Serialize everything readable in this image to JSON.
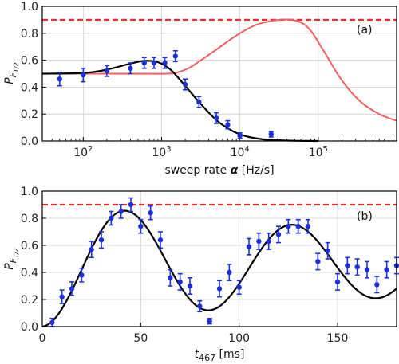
{
  "colors": {
    "data_points": "#1f2fd8",
    "fit_curve": "#000000",
    "theory_curve": "#f06060",
    "max_line": "#e8302a",
    "grid": "#cfcfcf"
  },
  "chart_data": [
    {
      "type": "scatter",
      "panel_label": "(a)",
      "xlabel": "sweep rate",
      "xlabel_symbol": "α",
      "xlabel_unit": "[Hz/s]",
      "ylabel": "P",
      "ylabel_sub": "F",
      "ylabel_subsub": "T/2",
      "x_scale": "log",
      "xlim": [
        30,
        1000000
      ],
      "ylim": [
        0,
        1.0
      ],
      "x_ticks": [
        {
          "value": 100,
          "label": "10",
          "exp": "2"
        },
        {
          "value": 1000,
          "label": "10",
          "exp": "3"
        },
        {
          "value": 10000,
          "label": "10",
          "exp": "4"
        },
        {
          "value": 100000,
          "label": "10",
          "exp": "5"
        }
      ],
      "y_ticks": [
        "0.0",
        "0.2",
        "0.4",
        "0.6",
        "0.8",
        "1.0"
      ],
      "grid": true,
      "max_line": 0.9,
      "series": [
        {
          "role": "measured",
          "x": [
            50,
            100,
            200,
            400,
            600,
            800,
            1100,
            1500,
            2000,
            3000,
            5000,
            7000,
            10000,
            25000
          ],
          "y": [
            0.46,
            0.49,
            0.52,
            0.54,
            0.58,
            0.58,
            0.58,
            0.63,
            0.42,
            0.29,
            0.17,
            0.12,
            0.04,
            0.05
          ],
          "yerr": [
            0.05,
            0.05,
            0.04,
            0.04,
            0.04,
            0.04,
            0.04,
            0.04,
            0.04,
            0.04,
            0.04,
            0.03,
            0.02,
            0.02
          ]
        },
        {
          "role": "fit",
          "x": [
            30,
            100,
            200,
            400,
            600,
            900,
            1300,
            2000,
            3000,
            5000,
            8000,
            12000,
            20000,
            35000,
            60000,
            100000
          ],
          "y": [
            0.5,
            0.505,
            0.53,
            0.575,
            0.595,
            0.585,
            0.53,
            0.41,
            0.29,
            0.155,
            0.075,
            0.035,
            0.012,
            0.004,
            0.001,
            0.0
          ]
        },
        {
          "role": "theory",
          "x": [
            30,
            500,
            1200,
            1600,
            2200,
            3000,
            4500,
            7000,
            10000,
            15000,
            22000,
            32000,
            45000,
            60000,
            80000,
            120000,
            200000,
            350000,
            600000,
            1000000
          ],
          "y": [
            0.5,
            0.5,
            0.5,
            0.51,
            0.54,
            0.59,
            0.66,
            0.74,
            0.8,
            0.855,
            0.885,
            0.9,
            0.9,
            0.88,
            0.82,
            0.66,
            0.45,
            0.29,
            0.2,
            0.15
          ]
        }
      ]
    },
    {
      "type": "scatter",
      "panel_label": "(b)",
      "xlabel": "t",
      "xlabel_sub": "467",
      "xlabel_unit": "[ms]",
      "ylabel": "P",
      "ylabel_sub": "F",
      "ylabel_subsub": "T/2",
      "xlim": [
        0,
        180
      ],
      "ylim": [
        0,
        1.0
      ],
      "x_ticks": [
        "0",
        "50",
        "100",
        "150"
      ],
      "y_ticks": [
        "0.0",
        "0.2",
        "0.4",
        "0.6",
        "0.8",
        "1.0"
      ],
      "grid": true,
      "max_line": 0.9,
      "series": [
        {
          "role": "measured",
          "x": [
            5,
            10,
            15,
            20,
            25,
            30,
            35,
            40,
            45,
            50,
            55,
            60,
            65,
            70,
            75,
            80,
            85,
            90,
            95,
            100,
            105,
            110,
            115,
            120,
            125,
            130,
            135,
            140,
            145,
            150,
            155,
            160,
            165,
            170,
            175,
            180
          ],
          "y": [
            0.03,
            0.22,
            0.28,
            0.38,
            0.57,
            0.64,
            0.8,
            0.85,
            0.9,
            0.74,
            0.84,
            0.64,
            0.36,
            0.33,
            0.3,
            0.15,
            0.04,
            0.28,
            0.4,
            0.29,
            0.59,
            0.63,
            0.63,
            0.68,
            0.74,
            0.74,
            0.74,
            0.48,
            0.56,
            0.33,
            0.45,
            0.44,
            0.42,
            0.31,
            0.42,
            0.45
          ],
          "yerr": [
            0.03,
            0.05,
            0.05,
            0.05,
            0.06,
            0.06,
            0.05,
            0.05,
            0.05,
            0.05,
            0.05,
            0.06,
            0.06,
            0.06,
            0.06,
            0.04,
            0.02,
            0.06,
            0.06,
            0.05,
            0.06,
            0.06,
            0.06,
            0.06,
            0.05,
            0.05,
            0.05,
            0.06,
            0.06,
            0.06,
            0.06,
            0.06,
            0.06,
            0.06,
            0.06,
            0.06
          ]
        },
        {
          "role": "fit",
          "equation": "y = 0.46 - 0.46*exp(-t/280)*cos(2*pi*t/85)",
          "amplitude": 0.46,
          "offset": 0.46,
          "period": 85,
          "decay": 280
        }
      ]
    }
  ]
}
